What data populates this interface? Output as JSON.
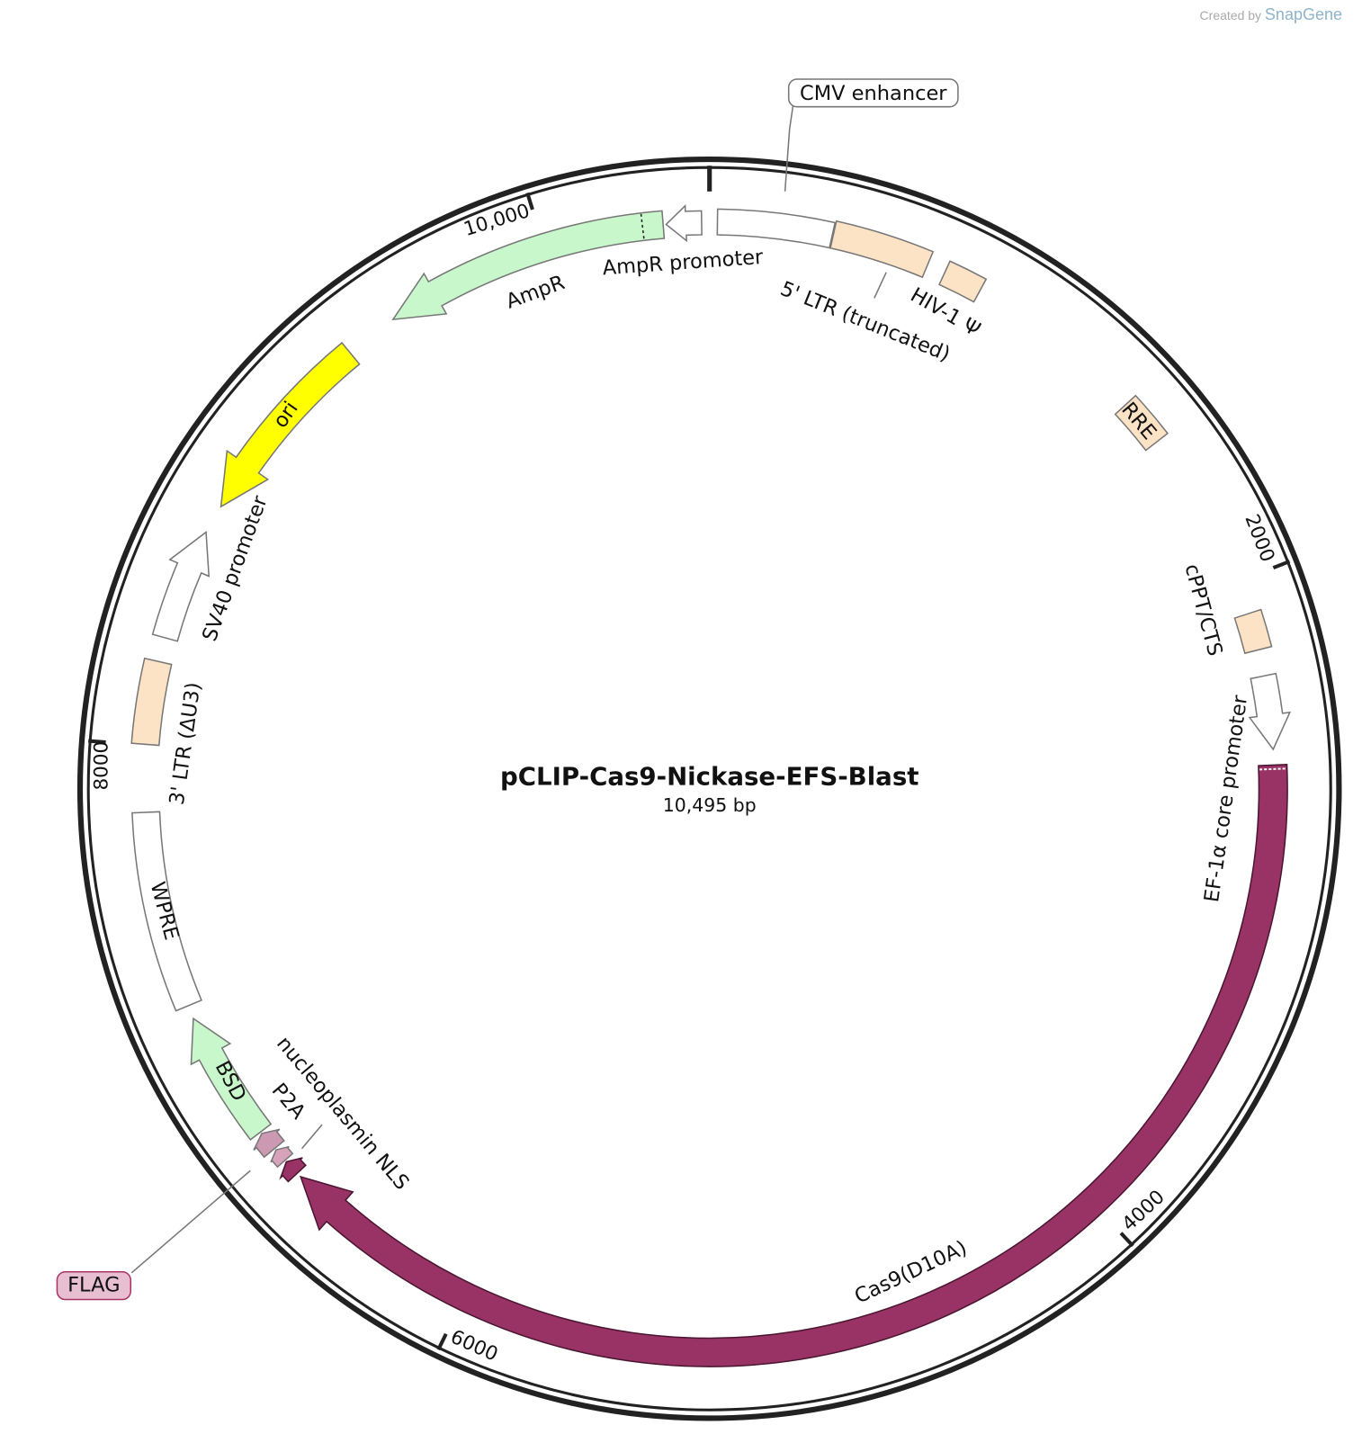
{
  "header": {
    "credit": "Created by",
    "brand": "SnapGene"
  },
  "map": {
    "title": "pCLIP-Cas9-Nickase-EFS-Blast",
    "length": "10,495 bp",
    "ticks": [
      "2000",
      "4000",
      "6000",
      "8000",
      "10,000"
    ],
    "features": [
      {
        "label": "CMV enhancer"
      },
      {
        "label": "5' LTR (truncated)"
      },
      {
        "label": "HIV-1 Ψ"
      },
      {
        "label": "RRE"
      },
      {
        "label": "cPPT/CTS"
      },
      {
        "label": "EF-1α core promoter"
      },
      {
        "label": "Cas9(D10A)"
      },
      {
        "label": "FLAG"
      },
      {
        "label": "nucleoplasmin NLS"
      },
      {
        "label": "P2A"
      },
      {
        "label": "BSD"
      },
      {
        "label": "WPRE"
      },
      {
        "label": "3' LTR (ΔU3)"
      },
      {
        "label": "SV40 promoter"
      },
      {
        "label": "ori"
      },
      {
        "label": "AmpR"
      },
      {
        "label": "AmpR promoter"
      }
    ]
  }
}
